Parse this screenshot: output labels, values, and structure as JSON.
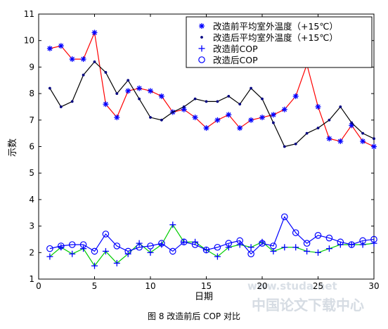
{
  "chart_data": {
    "type": "line",
    "xlabel": "日期",
    "ylabel": "示数",
    "xlim": [
      0,
      30
    ],
    "ylim": [
      1,
      11
    ],
    "xticks": [
      0,
      5,
      10,
      15,
      20,
      25,
      30
    ],
    "yticks": [
      1,
      2,
      3,
      4,
      5,
      6,
      7,
      8,
      9,
      10,
      11
    ],
    "grid": false,
    "legend_position": "top-right",
    "x": [
      1,
      2,
      3,
      4,
      5,
      6,
      7,
      8,
      9,
      10,
      11,
      12,
      13,
      14,
      15,
      16,
      17,
      18,
      19,
      20,
      21,
      22,
      23,
      24,
      25,
      26,
      27,
      28,
      29,
      30
    ],
    "series": [
      {
        "name": "改造前平均室外温度（+15℃）",
        "marker": "star",
        "marker_color": "#0000ff",
        "line_color": "#ff0000",
        "values": [
          9.7,
          9.8,
          9.3,
          9.3,
          10.3,
          7.6,
          7.1,
          8.1,
          8.2,
          8.1,
          7.9,
          7.3,
          7.4,
          7.1,
          6.7,
          7.0,
          7.2,
          6.7,
          7.0,
          7.1,
          7.2,
          7.4,
          7.9,
          9.1,
          7.5,
          6.3,
          6.2,
          6.8,
          6.2,
          6.0
        ]
      },
      {
        "name": "改造后平均室外温度（+15℃）",
        "marker": "dot",
        "marker_color": "#000080",
        "line_color": "#000000",
        "values": [
          8.2,
          7.5,
          7.7,
          8.7,
          9.2,
          8.8,
          8.0,
          8.5,
          7.8,
          7.1,
          7.0,
          7.3,
          7.5,
          7.8,
          7.7,
          7.7,
          7.9,
          7.6,
          8.2,
          7.8,
          6.9,
          6.0,
          6.1,
          6.5,
          6.7,
          7.0,
          7.5,
          6.9,
          6.5,
          6.3
        ]
      },
      {
        "name": "改造前COP",
        "marker": "plus",
        "marker_color": "#0000ff",
        "line_color": "#00cc00",
        "values": [
          1.85,
          2.2,
          1.95,
          2.15,
          1.5,
          2.05,
          1.6,
          1.95,
          2.35,
          2.0,
          2.3,
          3.05,
          2.4,
          2.4,
          2.1,
          1.85,
          2.2,
          2.3,
          2.2,
          2.4,
          2.05,
          2.2,
          2.2,
          2.05,
          2.0,
          2.15,
          2.3,
          2.3,
          2.3,
          2.35
        ]
      },
      {
        "name": "改造后COP",
        "marker": "circle",
        "marker_color": "#0000ff",
        "line_color": "#0000ff",
        "values": [
          2.15,
          2.25,
          2.3,
          2.3,
          2.05,
          2.7,
          2.25,
          2.05,
          2.2,
          2.25,
          2.35,
          2.05,
          2.4,
          2.3,
          2.1,
          2.2,
          2.35,
          2.45,
          1.95,
          2.35,
          2.25,
          3.35,
          2.75,
          2.35,
          2.65,
          2.55,
          2.4,
          2.3,
          2.45,
          2.5
        ]
      }
    ]
  },
  "caption": "图 8  改造前后 COP 对比",
  "watermark": {
    "url_text": "www.studa.net",
    "cn_text": "中国论文下载中心"
  }
}
